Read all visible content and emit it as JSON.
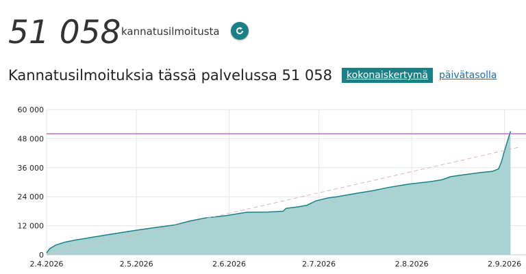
{
  "summary": {
    "count": "51 058",
    "label": "kannatusilmoitusta",
    "refresh_icon": "refresh-icon"
  },
  "header": {
    "title": "Kannatusilmoituksia tässä palvelussa 51 058",
    "tabs": [
      {
        "label": "kokonaiskertymä",
        "active": true
      },
      {
        "label": "päivätasolla",
        "active": false
      }
    ]
  },
  "colors": {
    "accent": "#1b7f86",
    "area_fill": "#a9d3d2",
    "area_stroke": "#1b7f86",
    "target_line": "#b36fb3",
    "trend_line": "#d9b3c6"
  },
  "chart_data": {
    "type": "area",
    "title": "",
    "xlabel": "",
    "ylabel": "",
    "ylim": [
      0,
      60000
    ],
    "yticks": [
      0,
      12000,
      24000,
      36000,
      48000,
      60000
    ],
    "ytick_labels": [
      "0",
      "12 000",
      "24 000",
      "36 000",
      "48 000",
      "60 000"
    ],
    "xticks": [
      "2.4.2026",
      "2.5.2026",
      "2.6.2026",
      "2.7.2026",
      "2.8.2026",
      "2.9.2026"
    ],
    "xlim": [
      "2026-04-02",
      "2026-09-07"
    ],
    "grid": true,
    "target_line": 50000,
    "trend": {
      "start": [
        "2026-04-02",
        0
      ],
      "end": [
        "2026-09-07",
        44500
      ]
    },
    "series": [
      {
        "values": [
          [
            "2026-04-02",
            800
          ],
          [
            "2026-04-03",
            2500
          ],
          [
            "2026-04-05",
            4000
          ],
          [
            "2026-04-08",
            5200
          ],
          [
            "2026-04-12",
            6200
          ],
          [
            "2026-04-16",
            7000
          ],
          [
            "2026-04-20",
            7800
          ],
          [
            "2026-04-25",
            8800
          ],
          [
            "2026-05-01",
            10000
          ],
          [
            "2026-05-08",
            11200
          ],
          [
            "2026-05-15",
            12400
          ],
          [
            "2026-05-20",
            14000
          ],
          [
            "2026-05-25",
            15200
          ],
          [
            "2026-06-01",
            16200
          ],
          [
            "2026-06-05",
            17000
          ],
          [
            "2026-06-08",
            17600
          ],
          [
            "2026-06-15",
            17700
          ],
          [
            "2026-06-20",
            18000
          ],
          [
            "2026-06-21",
            19200
          ],
          [
            "2026-06-25",
            19800
          ],
          [
            "2026-06-28",
            20500
          ],
          [
            "2026-07-01",
            22300
          ],
          [
            "2026-07-05",
            23500
          ],
          [
            "2026-07-08",
            24000
          ],
          [
            "2026-07-15",
            25500
          ],
          [
            "2026-07-20",
            26500
          ],
          [
            "2026-07-25",
            27800
          ],
          [
            "2026-08-01",
            29200
          ],
          [
            "2026-08-08",
            30200
          ],
          [
            "2026-08-12",
            31000
          ],
          [
            "2026-08-15",
            32300
          ],
          [
            "2026-08-20",
            33200
          ],
          [
            "2026-08-25",
            34000
          ],
          [
            "2026-08-29",
            34500
          ],
          [
            "2026-08-31",
            35500
          ],
          [
            "2026-09-01",
            38500
          ],
          [
            "2026-09-02",
            43000
          ],
          [
            "2026-09-03",
            47000
          ],
          [
            "2026-09-04",
            51058
          ]
        ]
      }
    ]
  }
}
